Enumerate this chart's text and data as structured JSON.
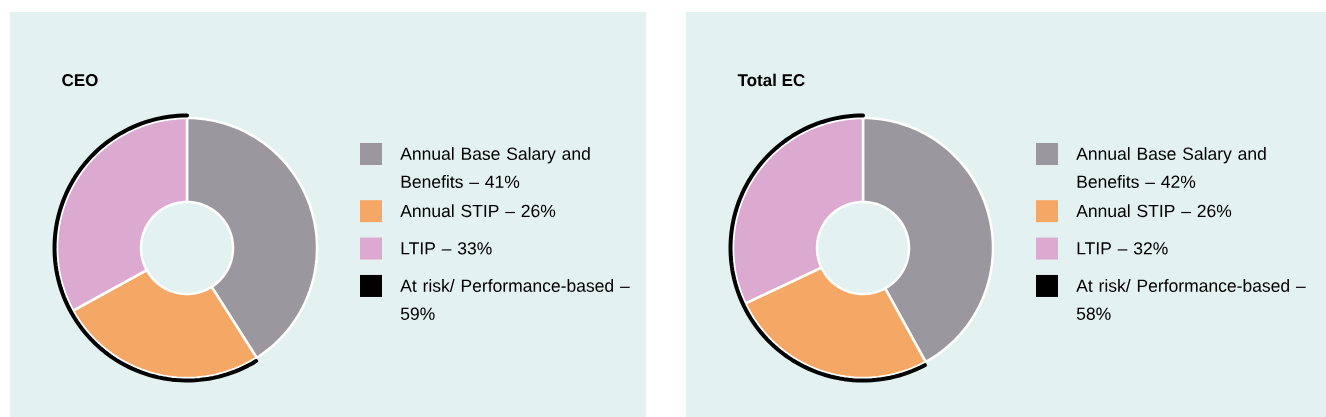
{
  "chart_data": [
    {
      "type": "donut",
      "title": "CEO",
      "legend": "right",
      "categories": [
        "Annual Base Salary and Benefits – 41%",
        "Annual STIP – 26%",
        "LTIP – 33%"
      ],
      "values": [
        41,
        26,
        33
      ],
      "colors": [
        "#9a979f",
        "#f5a866",
        "#dcaad0"
      ],
      "annotations": [
        "At risk/ Performance-based – 59%"
      ]
    },
    {
      "type": "donut",
      "title": "Total EC",
      "legend": "right",
      "categories": [
        "Annual Base Salary and Benefits – 42%",
        "Annual STIP – 26%",
        "LTIP – 32%"
      ],
      "values": [
        42,
        26,
        32
      ],
      "colors": [
        "#9a979f",
        "#f5a866",
        "#dcaad0"
      ],
      "annotations": [
        "At risk/ Performance-based – 58%"
      ]
    }
  ]
}
